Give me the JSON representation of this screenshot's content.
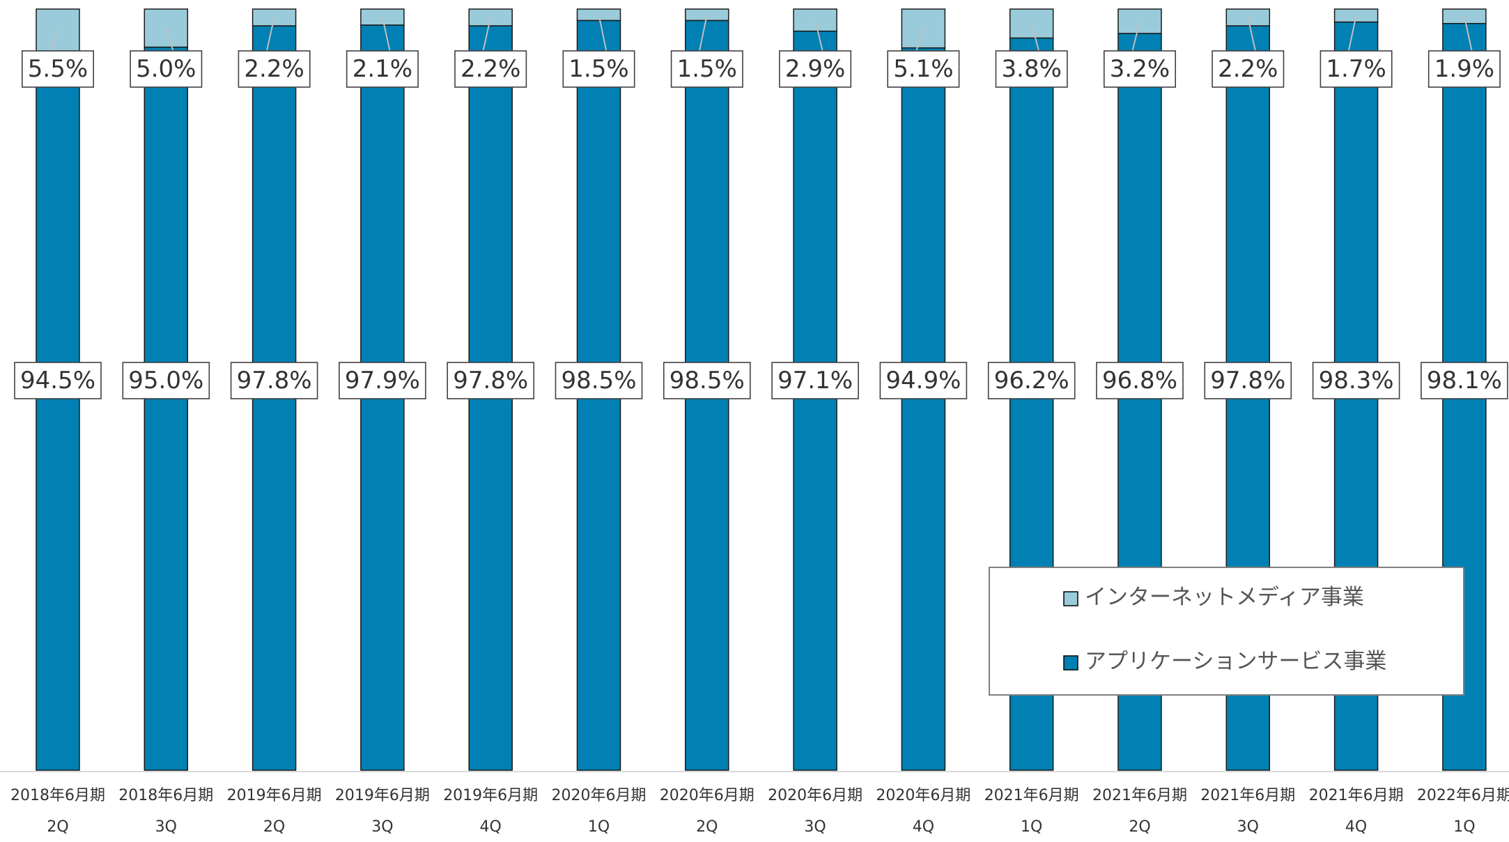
{
  "chart_data": {
    "type": "bar",
    "stacked": true,
    "percent_stacked": true,
    "categories": [
      [
        "2018年6月期",
        "2Q"
      ],
      [
        "2018年6月期",
        "3Q"
      ],
      [
        "2019年6月期",
        "2Q"
      ],
      [
        "2019年6月期",
        "3Q"
      ],
      [
        "2019年6月期",
        "4Q"
      ],
      [
        "2020年6月期",
        "1Q"
      ],
      [
        "2020年6月期",
        "2Q"
      ],
      [
        "2020年6月期",
        "3Q"
      ],
      [
        "2020年6月期",
        "4Q"
      ],
      [
        "2021年6月期",
        "1Q"
      ],
      [
        "2021年6月期",
        "2Q"
      ],
      [
        "2021年6月期",
        "3Q"
      ],
      [
        "2021年6月期",
        "4Q"
      ],
      [
        "2022年6月期",
        "1Q"
      ]
    ],
    "series": [
      {
        "name": "アプリケーションサービス事業",
        "color": "#0080B3",
        "values": [
          94.5,
          95.0,
          97.8,
          97.9,
          97.8,
          98.5,
          98.5,
          97.1,
          94.9,
          96.2,
          96.8,
          97.8,
          98.3,
          98.1
        ],
        "labels": [
          "94.5%",
          "95.0%",
          "97.8%",
          "97.9%",
          "97.8%",
          "98.5%",
          "98.5%",
          "97.1%",
          "94.9%",
          "96.2%",
          "96.8%",
          "97.8%",
          "98.3%",
          "98.1%"
        ]
      },
      {
        "name": "インターネットメディア事業",
        "color": "#9ACBDA",
        "values": [
          5.5,
          5.0,
          2.2,
          2.1,
          2.2,
          1.5,
          1.5,
          2.9,
          5.1,
          3.8,
          3.2,
          2.2,
          1.7,
          1.9
        ],
        "labels": [
          "5.5%",
          "5.0%",
          "2.2%",
          "2.1%",
          "2.2%",
          "1.5%",
          "1.5%",
          "2.9%",
          "5.1%",
          "3.8%",
          "3.2%",
          "2.2%",
          "1.7%",
          "1.9%"
        ]
      }
    ],
    "ylim": [
      0,
      100
    ],
    "grid": false,
    "legend": {
      "placement": "bottom-right",
      "entries": [
        "インターネットメディア事業",
        "アプリケーションサービス事業"
      ]
    }
  }
}
